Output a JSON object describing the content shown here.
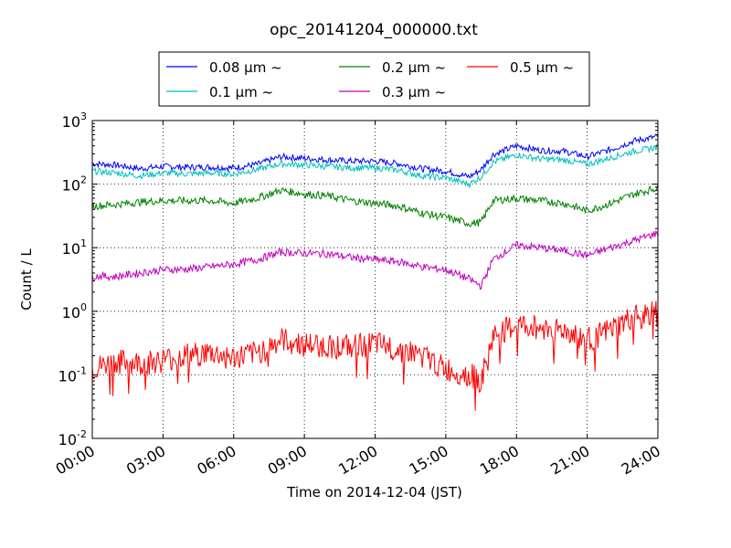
{
  "chart_data": {
    "type": "line",
    "title": "opc_20141204_000000.txt",
    "xlabel": "Time on 2014-12-04 (JST)",
    "ylabel": "Count / L",
    "xlim": [
      "00:00",
      "24:00"
    ],
    "ylim": [
      0.01,
      1000
    ],
    "yscale": "log",
    "grid": true,
    "legend_position": "top-center",
    "x_ticks": [
      "00:00",
      "03:00",
      "06:00",
      "09:00",
      "12:00",
      "15:00",
      "18:00",
      "21:00",
      "24:00"
    ],
    "y_ticks": [
      {
        "base": "10",
        "exp": "-2"
      },
      {
        "base": "10",
        "exp": "-1"
      },
      {
        "base": "10",
        "exp": "0"
      },
      {
        "base": "10",
        "exp": "1"
      },
      {
        "base": "10",
        "exp": "2"
      },
      {
        "base": "10",
        "exp": "3"
      }
    ],
    "series": [
      {
        "name": "0.08 μm ~",
        "color": "#0000ff",
        "x": [
          "00:00",
          "01:00",
          "02:00",
          "03:00",
          "04:00",
          "05:00",
          "06:00",
          "07:00",
          "08:00",
          "09:00",
          "10:00",
          "11:00",
          "12:00",
          "13:00",
          "14:00",
          "15:00",
          "16:00",
          "16:30",
          "17:00",
          "18:00",
          "19:00",
          "20:00",
          "21:00",
          "22:00",
          "23:00",
          "24:00"
        ],
        "values": [
          210,
          200,
          175,
          190,
          185,
          185,
          180,
          205,
          270,
          255,
          240,
          230,
          230,
          210,
          175,
          160,
          130,
          170,
          290,
          400,
          340,
          330,
          270,
          350,
          480,
          560
        ]
      },
      {
        "name": "0.1 μm ~",
        "color": "#00bfbf",
        "x": [
          "00:00",
          "01:00",
          "02:00",
          "03:00",
          "04:00",
          "05:00",
          "06:00",
          "07:00",
          "08:00",
          "09:00",
          "10:00",
          "11:00",
          "12:00",
          "13:00",
          "14:00",
          "15:00",
          "16:00",
          "16:30",
          "17:00",
          "18:00",
          "19:00",
          "20:00",
          "21:00",
          "22:00",
          "23:00",
          "24:00"
        ],
        "values": [
          160,
          150,
          135,
          150,
          145,
          150,
          145,
          170,
          210,
          200,
          190,
          180,
          180,
          165,
          135,
          125,
          100,
          130,
          220,
          290,
          250,
          240,
          205,
          260,
          330,
          380
        ]
      },
      {
        "name": "0.2 μm ~",
        "color": "#008000",
        "x": [
          "00:00",
          "01:00",
          "02:00",
          "03:00",
          "04:00",
          "05:00",
          "06:00",
          "07:00",
          "08:00",
          "09:00",
          "10:00",
          "11:00",
          "12:00",
          "13:00",
          "14:00",
          "15:00",
          "16:00",
          "16:30",
          "17:00",
          "18:00",
          "19:00",
          "20:00",
          "21:00",
          "22:00",
          "23:00",
          "24:00"
        ],
        "values": [
          45,
          48,
          52,
          55,
          55,
          55,
          50,
          60,
          80,
          70,
          65,
          55,
          50,
          45,
          35,
          30,
          24,
          25,
          55,
          60,
          55,
          50,
          38,
          50,
          70,
          88
        ]
      },
      {
        "name": "0.3 μm ~",
        "color": "#bf00bf",
        "x": [
          "00:00",
          "01:00",
          "02:00",
          "03:00",
          "04:00",
          "05:00",
          "06:00",
          "07:00",
          "08:00",
          "09:00",
          "10:00",
          "11:00",
          "12:00",
          "13:00",
          "14:00",
          "15:00",
          "16:00",
          "16:30",
          "17:00",
          "18:00",
          "19:00",
          "20:00",
          "21:00",
          "22:00",
          "23:00",
          "24:00"
        ],
        "values": [
          3.6,
          3.5,
          4.0,
          4.5,
          4.6,
          5.0,
          5.5,
          6.5,
          8.5,
          8.2,
          8.0,
          7.0,
          6.5,
          6.0,
          5.0,
          4.5,
          3.2,
          2.5,
          6.5,
          11,
          10,
          9.0,
          7.5,
          10,
          13,
          17
        ]
      },
      {
        "name": "0.5 μm ~",
        "color": "#ff0000",
        "x": [
          "00:00",
          "01:00",
          "02:00",
          "03:00",
          "04:00",
          "05:00",
          "06:00",
          "07:00",
          "08:00",
          "09:00",
          "10:00",
          "11:00",
          "12:00",
          "13:00",
          "14:00",
          "15:00",
          "16:00",
          "16:30",
          "17:00",
          "18:00",
          "19:00",
          "20:00",
          "21:00",
          "22:00",
          "23:00",
          "24:00"
        ],
        "values": [
          0.12,
          0.16,
          0.15,
          0.17,
          0.2,
          0.22,
          0.18,
          0.22,
          0.35,
          0.3,
          0.28,
          0.28,
          0.3,
          0.25,
          0.2,
          0.12,
          0.1,
          0.08,
          0.4,
          0.6,
          0.55,
          0.5,
          0.35,
          0.5,
          0.8,
          1.0
        ]
      }
    ]
  }
}
